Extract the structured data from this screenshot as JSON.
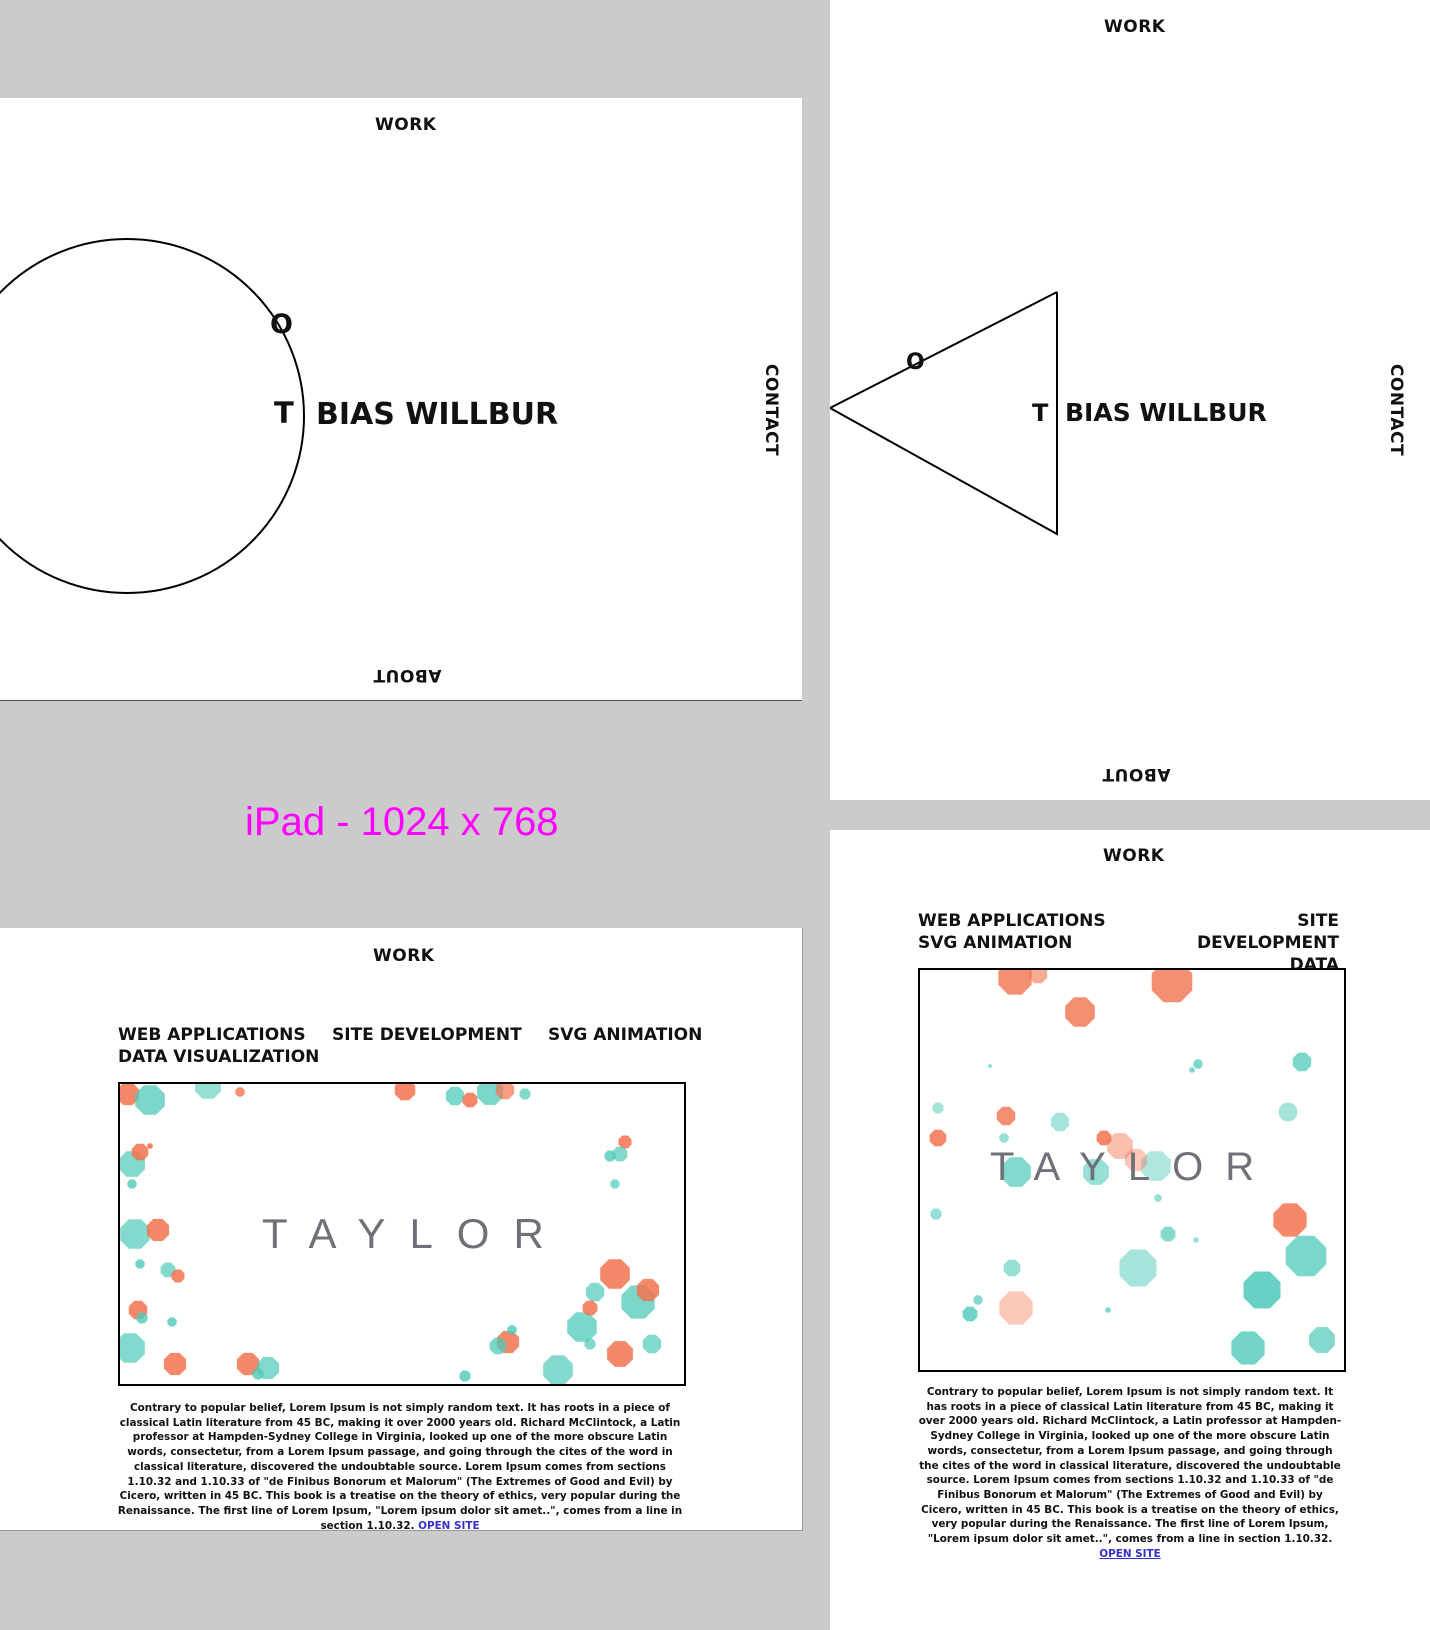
{
  "caption": "iPad - 1024 x 768",
  "home_circle": {
    "nav_top": "WORK",
    "nav_right": "CONTACT",
    "nav_bottom": "ABOUT",
    "logo_t": "T",
    "logo_o": "O",
    "name": "BIAS WILLBUR"
  },
  "home_triangle": {
    "nav_top": "WORK",
    "nav_right": "CONTACT",
    "nav_bottom": "ABOUT",
    "logo_t": "T",
    "logo_o": "O",
    "name": "BIAS WILLBUR"
  },
  "work_landscape": {
    "nav_top": "WORK",
    "services": [
      "WEB APPLICATIONS",
      "DATA VISUALIZATION",
      "SITE DEVELOPMENT",
      "SVG ANIMATION"
    ],
    "project_title": "TAYLOR",
    "description": "Contrary to popular belief, Lorem Ipsum is not simply random text. It has roots in a piece of classical Latin literature from 45 BC, making it over 2000 years old. Richard McClintock, a Latin professor at Hampden-Sydney College in Virginia, looked up one of the more obscure Latin words, consectetur, from a Lorem Ipsum passage, and going through the cites of the word in classical literature, discovered the undoubtable source. Lorem Ipsum comes from sections 1.10.32 and 1.10.33 of \"de Finibus Bonorum et Malorum\" (The Extremes of Good and Evil) by Cicero, written in 45 BC. This book is a treatise on the theory of ethics, very popular during the Renaissance. The first line of Lorem Ipsum, \"Lorem ipsum dolor sit amet..\", comes from a line in section 1.10.32.",
    "link": "OPEN SITE"
  },
  "work_portrait": {
    "nav_top": "WORK",
    "services": [
      "WEB APPLICATIONS",
      "SVG ANIMATION",
      "SITE DEVELOPMENT",
      "DATA VISUALIZATION"
    ],
    "project_title": "TAYLOR",
    "description": "Contrary to popular belief, Lorem Ipsum is not simply random text. It has roots in a piece of classical Latin literature from 45 BC, making it over 2000 years old. Richard McClintock, a Latin professor at Hampden-Sydney College in Virginia, looked up one of the more obscure Latin words, consectetur, from a Lorem Ipsum passage, and going through the cites of the word in classical literature, discovered the undoubtable source. Lorem Ipsum comes from sections 1.10.32 and 1.10.33 of \"de Finibus Bonorum et Malorum\" (The Extremes of Good and Evil) by Cicero, written in 45 BC. This book is a treatise on the theory of ethics, very popular during the Renaissance. The first line of Lorem Ipsum, \"Lorem ipsum dolor sit amet..\", comes from a line in section 1.10.32.",
    "link": "OPEN SITE"
  },
  "colors": {
    "teal": "#4ec9b8",
    "coral": "#f2734f",
    "caption": "#ff00ff"
  }
}
